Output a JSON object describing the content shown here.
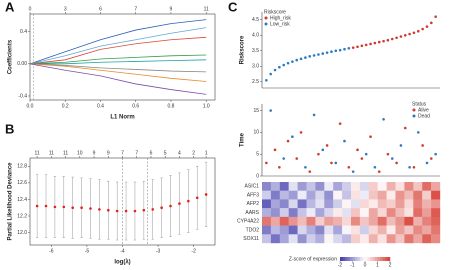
{
  "chart_data": [
    {
      "type": "line",
      "panel": "A",
      "ylabel": "Coefficients",
      "xlabel": "L1 Norm",
      "x": [
        0,
        0.2,
        0.4,
        0.6,
        0.8,
        1.0
      ],
      "xlim": [
        0,
        1.05
      ],
      "xticks": [
        {
          "value": 0,
          "label": "0.0"
        },
        0.2,
        0.4,
        0.6,
        0.8,
        {
          "value": 1,
          "label": "1.0"
        }
      ],
      "top_ticks": [
        {
          "value": 0,
          "label": "0"
        },
        {
          "value": 0.2,
          "label": "3"
        },
        {
          "value": 0.4,
          "label": "6"
        },
        {
          "value": 0.6,
          "label": "7"
        },
        {
          "value": 0.8,
          "label": "9"
        },
        {
          "value": 1,
          "label": "11"
        }
      ],
      "ylim": [
        -0.45,
        0.62
      ],
      "yticks": [
        -0.4,
        {
          "value": 0,
          "label": "0.00"
        },
        0.4
      ],
      "vline": 0.02,
      "series": [
        {
          "color": "#2b5fb4",
          "values": [
            0,
            0.15,
            0.3,
            0.42,
            0.5,
            0.55
          ]
        },
        {
          "color": "#5fa8d8",
          "values": [
            0,
            0.1,
            0.22,
            0.3,
            0.38,
            0.45
          ]
        },
        {
          "color": "#d9473c",
          "values": [
            0,
            0.05,
            0.18,
            0.25,
            0.3,
            0.33
          ]
        },
        {
          "color": "#3a9a4a",
          "values": [
            0,
            0.02,
            0.06,
            0.08,
            0.1,
            0.11
          ]
        },
        {
          "color": "#1aa3a3",
          "values": [
            0,
            0,
            0.02,
            0.03,
            0.04,
            0.05
          ]
        },
        {
          "color": "#888888",
          "values": [
            0,
            -0.02,
            -0.05,
            -0.07,
            -0.09,
            -0.1
          ]
        },
        {
          "color": "#e8892a",
          "values": [
            0,
            -0.03,
            -0.08,
            -0.13,
            -0.18,
            -0.22
          ]
        },
        {
          "color": "#7a4fa8",
          "values": [
            0,
            -0.08,
            -0.15,
            -0.25,
            -0.32,
            -0.38
          ]
        }
      ]
    },
    {
      "type": "errorbar",
      "panel": "B",
      "ylabel": "Partial Likelihood Deviance",
      "xlabel": "log(λ)",
      "x": [
        -6.4,
        -6.15,
        -5.9,
        -5.65,
        -5.4,
        -5.15,
        -4.9,
        -4.65,
        -4.4,
        -4.15,
        -3.9,
        -3.65,
        -3.4,
        -3.15,
        -2.9,
        -2.65,
        -2.4,
        -2.15,
        -1.9,
        -1.65
      ],
      "values": [
        12.32,
        12.32,
        12.31,
        12.31,
        12.3,
        12.3,
        12.29,
        12.28,
        12.27,
        12.26,
        12.26,
        12.26,
        12.27,
        12.28,
        12.3,
        12.32,
        12.35,
        12.38,
        12.42,
        12.46
      ],
      "errors": [
        0.38,
        0.38,
        0.37,
        0.37,
        0.37,
        0.36,
        0.36,
        0.36,
        0.35,
        0.35,
        0.35,
        0.35,
        0.35,
        0.36,
        0.36,
        0.37,
        0.37,
        0.38,
        0.38,
        0.39
      ],
      "xlim": [
        -6.6,
        -1.4
      ],
      "xticks": [
        -6,
        -5,
        -4,
        -3,
        -2
      ],
      "top_ticks": [
        {
          "value": -6.4,
          "label": "11"
        },
        {
          "value": -6.0,
          "label": "11"
        },
        {
          "value": -5.6,
          "label": "11"
        },
        {
          "value": -5.2,
          "label": "10"
        },
        {
          "value": -4.8,
          "label": "9"
        },
        {
          "value": -4.4,
          "label": "9"
        },
        {
          "value": -4.0,
          "label": "7"
        },
        {
          "value": -3.6,
          "label": "7"
        },
        {
          "value": -3.2,
          "label": "6"
        },
        {
          "value": -2.8,
          "label": "5"
        },
        {
          "value": -2.4,
          "label": "4"
        },
        {
          "value": -2.0,
          "label": "2"
        },
        {
          "value": -1.65,
          "label": "1"
        }
      ],
      "ylim": [
        11.85,
        12.9
      ],
      "yticks": [
        {
          "value": 12,
          "label": "12.0"
        },
        12.2,
        12.4,
        12.6,
        12.8
      ],
      "vlines": [
        -4.0,
        -3.3
      ]
    },
    {
      "type": "scatter",
      "panel": "C",
      "ylabel": "Riskscore",
      "legend_title": "Riskscore",
      "xlim": [
        0,
        41
      ],
      "ylim": [
        2.3,
        4.75
      ],
      "yticks": [
        2.5,
        {
          "value": 3,
          "label": "3.0"
        },
        3.5,
        {
          "value": 4,
          "label": "4.0"
        },
        4.5
      ],
      "series": [
        {
          "name": "High_risk",
          "color": "#d03b2e",
          "x": [
            21,
            22,
            23,
            24,
            25,
            26,
            27,
            28,
            29,
            30,
            31,
            32,
            33,
            34,
            35,
            36,
            37,
            38,
            39,
            40
          ],
          "values": [
            3.6,
            3.63,
            3.66,
            3.69,
            3.72,
            3.75,
            3.78,
            3.81,
            3.84,
            3.88,
            3.92,
            3.96,
            4.0,
            4.04,
            4.08,
            4.13,
            4.2,
            4.28,
            4.4,
            4.6
          ]
        },
        {
          "name": "Low_risk",
          "color": "#2c7bbf",
          "x": [
            1,
            2,
            3,
            4,
            5,
            6,
            7,
            8,
            9,
            10,
            11,
            12,
            13,
            14,
            15,
            16,
            17,
            18,
            19,
            20
          ],
          "values": [
            2.55,
            2.75,
            2.88,
            2.97,
            3.04,
            3.1,
            3.15,
            3.2,
            3.24,
            3.28,
            3.32,
            3.35,
            3.38,
            3.41,
            3.44,
            3.47,
            3.5,
            3.52,
            3.55,
            3.58
          ]
        }
      ]
    },
    {
      "type": "scatter",
      "ylabel": "Time",
      "legend_title": "Status",
      "legend": "right",
      "xlim": [
        0,
        41
      ],
      "ylim": [
        0,
        16.5
      ],
      "yticks": [
        0,
        5,
        10,
        15
      ],
      "series": [
        {
          "name": "Alive",
          "color": "#d03b2e",
          "x": [
            1,
            3,
            4,
            6,
            8,
            9,
            11,
            13,
            15,
            16,
            18,
            20,
            22,
            23,
            25,
            27,
            29,
            31,
            33,
            35,
            37,
            39
          ],
          "values": [
            3,
            6,
            2,
            8,
            4,
            10,
            1,
            5,
            7,
            3,
            12,
            2,
            6,
            4,
            9,
            1,
            5,
            3,
            11,
            2,
            7,
            4
          ]
        },
        {
          "name": "Dead",
          "color": "#2c7bbf",
          "x": [
            2,
            5,
            7,
            10,
            12,
            14,
            17,
            19,
            21,
            24,
            26,
            28,
            30,
            32,
            34,
            36,
            38,
            40
          ],
          "values": [
            15,
            4,
            9,
            2,
            14,
            6,
            3,
            8,
            1,
            5,
            2,
            13,
            4,
            7,
            2,
            10,
            3,
            5
          ]
        }
      ]
    },
    {
      "type": "heatmap",
      "zlim": [
        -2,
        2
      ],
      "colorbar_label": "Z-score of expression",
      "colorbar_ticks": [
        -2,
        -1,
        0,
        1,
        2
      ],
      "rows": [
        {
          "name": "ASIC1",
          "values": [
            -1.2,
            -0.8,
            -1.5,
            -0.3,
            -1,
            -0.6,
            -1.1,
            -0.2,
            -0.9,
            -0.5,
            0.2,
            -0.4,
            0.5,
            0.1,
            0.8,
            0.3,
            1.2,
            0.6,
            1.5,
            0.9
          ]
        },
        {
          "name": "AFF3",
          "values": [
            -0.5,
            -1.3,
            -0.7,
            -1,
            -0.2,
            -0.9,
            -0.4,
            -1.1,
            0.1,
            -0.6,
            0.3,
            -0.2,
            0.6,
            0.9,
            0.2,
            1.1,
            0.7,
            1.4,
            0.5,
            1.8
          ]
        },
        {
          "name": "AFP2",
          "values": [
            -1.6,
            -0.9,
            -1.2,
            -0.4,
            -1.4,
            -0.7,
            -0.3,
            -1,
            -0.5,
            0.1,
            -0.3,
            0.4,
            0.2,
            0.7,
            0.5,
            1,
            0.4,
            1.3,
            0.8,
            1.1
          ]
        },
        {
          "name": "AARS",
          "values": [
            -0.8,
            -1.1,
            -0.5,
            -1.3,
            -0.6,
            -0.2,
            -0.9,
            -0.4,
            0.2,
            -0.3,
            0.6,
            0.1,
            0.9,
            0.4,
            1.2,
            0.7,
            0.3,
            1.5,
            1,
            1.7
          ]
        },
        {
          "name": "CYP4A22",
          "values": [
            1.4,
            0.9,
            1.6,
            1.1,
            0.7,
            1.3,
            0.5,
            1,
            0.8,
            0.4,
            1.2,
            0.6,
            0.9,
            1.5,
            0.7,
            1.1,
            1.8,
            0.8,
            1.3,
            1.6
          ]
        },
        {
          "name": "TDO2",
          "values": [
            -1.3,
            -0.7,
            -1,
            -1.5,
            -0.4,
            -0.8,
            -1.2,
            -0.3,
            -0.9,
            -0.1,
            0.3,
            -0.5,
            0.4,
            0.8,
            0.2,
            1,
            0.6,
            1.2,
            0.9,
            1.4
          ]
        },
        {
          "name": "SOX11",
          "values": [
            -0.6,
            -1.4,
            -0.9,
            -0.3,
            -1.1,
            -0.5,
            -0.8,
            0.1,
            -0.4,
            -0.7,
            0.5,
            0.2,
            0.8,
            0.3,
            1.1,
            0.6,
            1.4,
            0.9,
            1.6,
            1.2
          ]
        }
      ]
    }
  ]
}
